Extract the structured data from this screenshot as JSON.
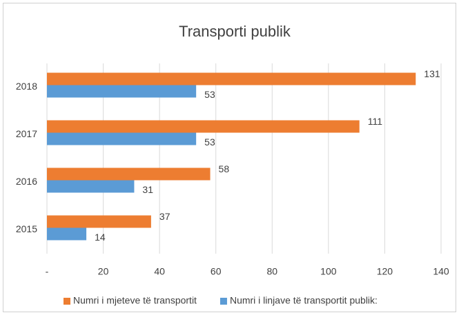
{
  "chart_data": {
    "type": "hbar",
    "title": "Transporti publik",
    "categories": [
      "2015",
      "2016",
      "2017",
      "2018"
    ],
    "series": [
      {
        "name": "Numri i mjeteve të transportit",
        "color": "#ed7d31",
        "values": [
          37,
          58,
          111,
          131
        ]
      },
      {
        "name": "Numri i linjave të transportit publik:",
        "color": "#5b9bd5",
        "values": [
          14,
          31,
          53,
          53
        ]
      }
    ],
    "xlim": [
      0,
      140
    ],
    "xticks": [
      {
        "value": 0,
        "label": "-"
      },
      20,
      40,
      60,
      80,
      100,
      120,
      140
    ],
    "grid": true,
    "legend": "bottom"
  }
}
